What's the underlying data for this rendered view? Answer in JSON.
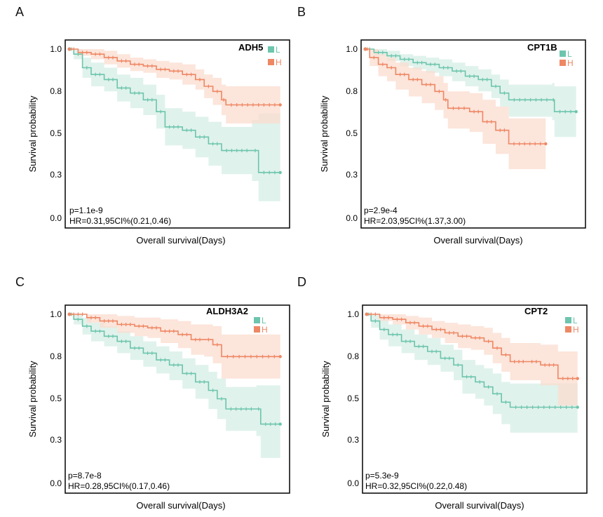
{
  "panels": [
    {
      "letter": "A",
      "gene": "ADH5",
      "ylabel": "Survival probability",
      "xlabel": "Overall survival(Days)",
      "yticks": [
        "1.0",
        "0.8",
        "0.5",
        "0.3",
        "0.0"
      ],
      "pvalue": "p=1.1e-9",
      "hr": "HR=0.31,95CI%(0.21,0.46)",
      "legend": [
        "L",
        "H"
      ]
    },
    {
      "letter": "B",
      "gene": "CPT1B",
      "ylabel": "Survival probability",
      "xlabel": "Overall survival(Days)",
      "yticks": [
        "1.0",
        "0.8",
        "0.5",
        "0.3",
        "0.0"
      ],
      "pvalue": "p=2.9e-4",
      "hr": "HR=2.03,95CI%(1.37,3.00)",
      "legend": [
        "L",
        "H"
      ]
    },
    {
      "letter": "C",
      "gene": "ALDH3A2",
      "ylabel": "Survival probability",
      "xlabel": "Overall survival(Days)",
      "yticks": [
        "1.0",
        "0.8",
        "0.5",
        "0.3",
        "0.0"
      ],
      "pvalue": "p=8.7e-8",
      "hr": "HR=0.28,95CI%(0.17,0.46)",
      "legend": [
        "L",
        "H"
      ]
    },
    {
      "letter": "D",
      "gene": "CPT2",
      "ylabel": "Survival probability",
      "xlabel": "Overall survival(Days)",
      "yticks": [
        "1.0",
        "0.8",
        "0.5",
        "0.3",
        "0.0"
      ],
      "pvalue": "p=5.3e-9",
      "hr": "HR=0.32,95CI%(0.22,0.48)",
      "legend": [
        "L",
        "H"
      ]
    }
  ],
  "colors": {
    "L": "#6cc5ac",
    "H": "#ee8764",
    "L_band": "#d6eee6",
    "H_band": "#fbdccf"
  },
  "chart_data": [
    {
      "type": "line",
      "title": "ADH5",
      "xlabel": "Overall survival(Days)",
      "ylabel": "Survival probability",
      "ylim": [
        0,
        1
      ],
      "x_range": [
        0,
        1
      ],
      "series": [
        {
          "name": "L",
          "points": [
            [
              0,
              1
            ],
            [
              0.02,
              0.97
            ],
            [
              0.06,
              0.89
            ],
            [
              0.1,
              0.85
            ],
            [
              0.16,
              0.82
            ],
            [
              0.22,
              0.77
            ],
            [
              0.28,
              0.74
            ],
            [
              0.34,
              0.7
            ],
            [
              0.4,
              0.63
            ],
            [
              0.44,
              0.54
            ],
            [
              0.52,
              0.52
            ],
            [
              0.58,
              0.48
            ],
            [
              0.64,
              0.44
            ],
            [
              0.7,
              0.4
            ],
            [
              0.84,
              0.4
            ],
            [
              0.87,
              0.27
            ],
            [
              0.97,
              0.27
            ]
          ],
          "ci_upper": [
            1,
            1,
            0.95,
            0.92,
            0.89,
            0.85,
            0.83,
            0.79,
            0.73,
            0.65,
            0.63,
            0.6,
            0.57,
            0.54,
            0.58,
            0.62,
            0.62
          ],
          "ci_lower": [
            1,
            0.94,
            0.83,
            0.78,
            0.75,
            0.69,
            0.65,
            0.61,
            0.53,
            0.43,
            0.41,
            0.36,
            0.31,
            0.26,
            0.22,
            0.1,
            0.1
          ]
        },
        {
          "name": "H",
          "points": [
            [
              0,
              1
            ],
            [
              0.04,
              0.98
            ],
            [
              0.1,
              0.97
            ],
            [
              0.16,
              0.95
            ],
            [
              0.22,
              0.93
            ],
            [
              0.28,
              0.91
            ],
            [
              0.34,
              0.9
            ],
            [
              0.4,
              0.88
            ],
            [
              0.46,
              0.87
            ],
            [
              0.52,
              0.85
            ],
            [
              0.58,
              0.82
            ],
            [
              0.62,
              0.78
            ],
            [
              0.66,
              0.75
            ],
            [
              0.7,
              0.7
            ],
            [
              0.72,
              0.67
            ],
            [
              0.97,
              0.67
            ]
          ],
          "ci_upper": [
            1,
            1,
            1,
            0.99,
            0.97,
            0.95,
            0.94,
            0.93,
            0.92,
            0.91,
            0.88,
            0.85,
            0.83,
            0.79,
            0.78,
            0.78
          ],
          "ci_lower": [
            1,
            0.96,
            0.94,
            0.91,
            0.89,
            0.87,
            0.86,
            0.83,
            0.82,
            0.79,
            0.76,
            0.71,
            0.67,
            0.61,
            0.56,
            0.56
          ]
        }
      ]
    },
    {
      "type": "line",
      "title": "CPT1B",
      "xlabel": "Overall survival(Days)",
      "ylabel": "Survival probability",
      "ylim": [
        0,
        1
      ],
      "x_range": [
        0,
        1
      ],
      "series": [
        {
          "name": "L",
          "points": [
            [
              0,
              1
            ],
            [
              0.04,
              0.98
            ],
            [
              0.1,
              0.96
            ],
            [
              0.16,
              0.94
            ],
            [
              0.22,
              0.92
            ],
            [
              0.28,
              0.91
            ],
            [
              0.34,
              0.89
            ],
            [
              0.4,
              0.87
            ],
            [
              0.46,
              0.84
            ],
            [
              0.52,
              0.82
            ],
            [
              0.58,
              0.78
            ],
            [
              0.62,
              0.74
            ],
            [
              0.66,
              0.7
            ],
            [
              0.86,
              0.7
            ],
            [
              0.87,
              0.63
            ],
            [
              0.97,
              0.63
            ]
          ],
          "ci_upper": [
            1,
            1,
            0.99,
            0.97,
            0.96,
            0.95,
            0.94,
            0.92,
            0.9,
            0.88,
            0.85,
            0.82,
            0.79,
            0.8,
            0.78,
            0.78
          ],
          "ci_lower": [
            1,
            0.96,
            0.93,
            0.9,
            0.88,
            0.86,
            0.84,
            0.81,
            0.78,
            0.75,
            0.71,
            0.66,
            0.6,
            0.58,
            0.48,
            0.48
          ]
        },
        {
          "name": "H",
          "points": [
            [
              0,
              1
            ],
            [
              0.02,
              0.95
            ],
            [
              0.06,
              0.91
            ],
            [
              0.1,
              0.89
            ],
            [
              0.14,
              0.85
            ],
            [
              0.2,
              0.82
            ],
            [
              0.26,
              0.79
            ],
            [
              0.32,
              0.75
            ],
            [
              0.36,
              0.7
            ],
            [
              0.38,
              0.65
            ],
            [
              0.48,
              0.63
            ],
            [
              0.54,
              0.57
            ],
            [
              0.6,
              0.52
            ],
            [
              0.66,
              0.44
            ],
            [
              0.83,
              0.44
            ]
          ],
          "ci_upper": [
            1,
            1,
            0.97,
            0.95,
            0.92,
            0.89,
            0.87,
            0.84,
            0.8,
            0.75,
            0.74,
            0.7,
            0.66,
            0.59,
            0.59
          ],
          "ci_lower": [
            1,
            0.9,
            0.84,
            0.81,
            0.76,
            0.72,
            0.68,
            0.64,
            0.59,
            0.53,
            0.51,
            0.44,
            0.38,
            0.29,
            0.29
          ]
        }
      ]
    },
    {
      "type": "line",
      "title": "ALDH3A2",
      "xlabel": "Overall survival(Days)",
      "ylabel": "Survival probability",
      "ylim": [
        0,
        1
      ],
      "x_range": [
        0,
        1
      ],
      "series": [
        {
          "name": "L",
          "points": [
            [
              0,
              1
            ],
            [
              0.02,
              0.97
            ],
            [
              0.06,
              0.93
            ],
            [
              0.1,
              0.9
            ],
            [
              0.16,
              0.87
            ],
            [
              0.22,
              0.84
            ],
            [
              0.28,
              0.8
            ],
            [
              0.34,
              0.77
            ],
            [
              0.4,
              0.73
            ],
            [
              0.46,
              0.7
            ],
            [
              0.52,
              0.65
            ],
            [
              0.58,
              0.6
            ],
            [
              0.64,
              0.55
            ],
            [
              0.68,
              0.5
            ],
            [
              0.72,
              0.44
            ],
            [
              0.86,
              0.44
            ],
            [
              0.88,
              0.35
            ],
            [
              0.97,
              0.35
            ]
          ],
          "ci_upper": [
            1,
            1,
            0.98,
            0.95,
            0.93,
            0.9,
            0.87,
            0.84,
            0.81,
            0.78,
            0.74,
            0.7,
            0.66,
            0.62,
            0.57,
            0.58,
            0.58,
            0.58
          ],
          "ci_lower": [
            1,
            0.94,
            0.88,
            0.84,
            0.81,
            0.77,
            0.73,
            0.69,
            0.65,
            0.61,
            0.56,
            0.5,
            0.44,
            0.38,
            0.31,
            0.28,
            0.15,
            0.15
          ]
        },
        {
          "name": "H",
          "points": [
            [
              0,
              1
            ],
            [
              0.08,
              0.98
            ],
            [
              0.14,
              0.96
            ],
            [
              0.22,
              0.94
            ],
            [
              0.3,
              0.93
            ],
            [
              0.36,
              0.92
            ],
            [
              0.42,
              0.9
            ],
            [
              0.5,
              0.88
            ],
            [
              0.56,
              0.85
            ],
            [
              0.62,
              0.85
            ],
            [
              0.66,
              0.82
            ],
            [
              0.7,
              0.75
            ],
            [
              0.97,
              0.75
            ]
          ],
          "ci_upper": [
            1,
            1,
            1,
            0.99,
            0.98,
            0.98,
            0.97,
            0.96,
            0.94,
            0.94,
            0.93,
            0.88,
            0.88
          ],
          "ci_lower": [
            1,
            0.95,
            0.92,
            0.89,
            0.87,
            0.86,
            0.83,
            0.8,
            0.76,
            0.75,
            0.71,
            0.62,
            0.62
          ]
        }
      ]
    },
    {
      "type": "line",
      "title": "CPT2",
      "xlabel": "Overall survival(Days)",
      "ylabel": "Survival probability",
      "ylim": [
        0,
        1
      ],
      "x_range": [
        0,
        1
      ],
      "series": [
        {
          "name": "L",
          "points": [
            [
              0,
              1
            ],
            [
              0.02,
              0.96
            ],
            [
              0.06,
              0.91
            ],
            [
              0.1,
              0.88
            ],
            [
              0.16,
              0.84
            ],
            [
              0.22,
              0.81
            ],
            [
              0.28,
              0.78
            ],
            [
              0.34,
              0.74
            ],
            [
              0.4,
              0.7
            ],
            [
              0.44,
              0.63
            ],
            [
              0.5,
              0.6
            ],
            [
              0.54,
              0.57
            ],
            [
              0.58,
              0.53
            ],
            [
              0.62,
              0.48
            ],
            [
              0.66,
              0.45
            ],
            [
              0.97,
              0.45
            ]
          ],
          "ci_upper": [
            1,
            1,
            0.97,
            0.94,
            0.91,
            0.88,
            0.86,
            0.82,
            0.79,
            0.73,
            0.7,
            0.68,
            0.65,
            0.6,
            0.59,
            0.59
          ],
          "ci_lower": [
            1,
            0.92,
            0.85,
            0.81,
            0.77,
            0.73,
            0.7,
            0.66,
            0.61,
            0.53,
            0.5,
            0.46,
            0.41,
            0.35,
            0.3,
            0.3
          ]
        },
        {
          "name": "H",
          "points": [
            [
              0,
              1
            ],
            [
              0.06,
              0.98
            ],
            [
              0.12,
              0.97
            ],
            [
              0.18,
              0.95
            ],
            [
              0.24,
              0.93
            ],
            [
              0.3,
              0.91
            ],
            [
              0.36,
              0.89
            ],
            [
              0.42,
              0.87
            ],
            [
              0.48,
              0.86
            ],
            [
              0.54,
              0.84
            ],
            [
              0.58,
              0.8
            ],
            [
              0.62,
              0.76
            ],
            [
              0.66,
              0.72
            ],
            [
              0.74,
              0.72
            ],
            [
              0.8,
              0.7
            ],
            [
              0.88,
              0.62
            ],
            [
              0.97,
              0.62
            ]
          ],
          "ci_upper": [
            1,
            1,
            1,
            0.99,
            0.98,
            0.96,
            0.95,
            0.94,
            0.93,
            0.92,
            0.89,
            0.86,
            0.83,
            0.83,
            0.82,
            0.78,
            0.78
          ],
          "ci_lower": [
            1,
            0.96,
            0.94,
            0.91,
            0.88,
            0.86,
            0.83,
            0.8,
            0.79,
            0.76,
            0.71,
            0.66,
            0.61,
            0.61,
            0.58,
            0.46,
            0.46
          ]
        }
      ]
    }
  ]
}
